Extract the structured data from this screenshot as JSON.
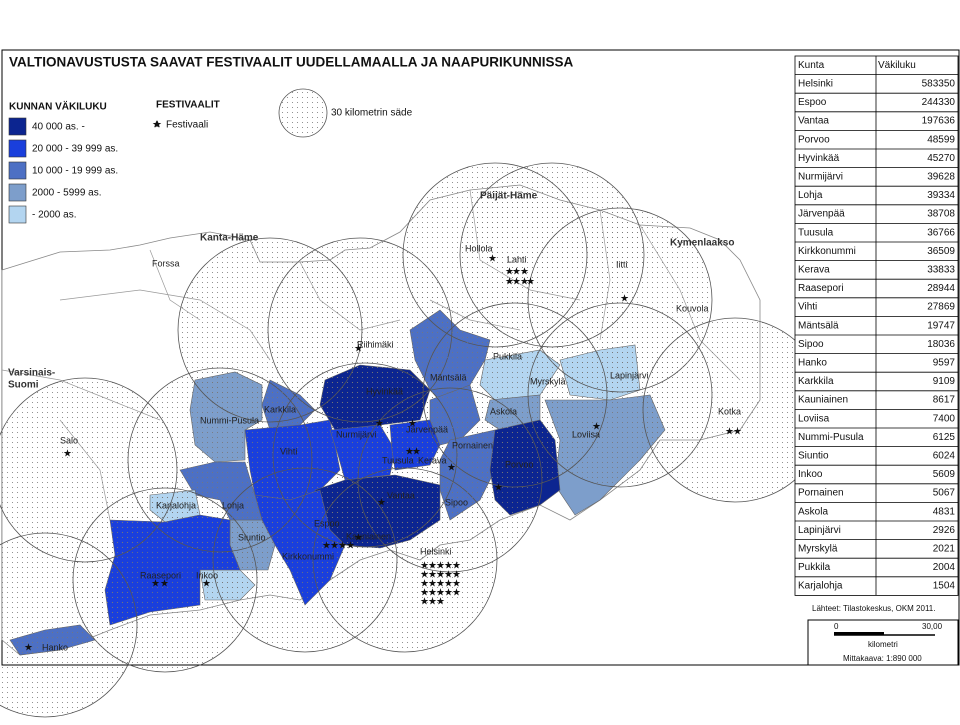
{
  "title": "VALTIONAVUSTUSTA SAAVAT FESTIVAALIT UUDELLAMAALLA JA NAAPURIKUNNISSA",
  "legend": {
    "population_title": "KUNNAN VÄKILUKU",
    "classes": [
      {
        "label": "40 000 as. -",
        "color": "#0c2590"
      },
      {
        "label": "20 000 - 39 999 as.",
        "color": "#1a3fdc"
      },
      {
        "label": "10 000 - 19 999 as.",
        "color": "#4d70c4"
      },
      {
        "label": "2000 - 5999 as.",
        "color": "#7d9ecb"
      },
      {
        "label": "- 2000 as.",
        "color": "#b3d5f0"
      }
    ],
    "festival_title": "FESTIVAALIT",
    "festival_label": "Festivaali",
    "radius_label": "30 kilometrin säde"
  },
  "regions": [
    "Kanta-Häme",
    "Päijät-Häme",
    "Kymenlaakso",
    "Varsinais-",
    "Suomi"
  ],
  "places": [
    "Forssa",
    "Hollola",
    "Lahti",
    "Iitti",
    "Kouvola",
    "Riihimäki",
    "Pukkila",
    "Mäntsälä",
    "Myrskylä",
    "Lapinjärvi",
    "Hyvinkää",
    "Askola",
    "Karkkila",
    "Nummi-Pusula",
    "Nurmijärvi",
    "Järvenpää",
    "Loviisa",
    "Kotka",
    "Pornainen",
    "Salo",
    "Vihti",
    "Tuusula",
    "Kerava",
    "Porvoo",
    "Vantaa",
    "Sipoo",
    "Karjalohja",
    "Lohja",
    "Espoo",
    "Kauniainen",
    "Siuntio",
    "Helsinki",
    "Kirkkonummi",
    "Raasepori",
    "Inkoo",
    "Hanko"
  ],
  "table": {
    "header": [
      "Kunta",
      "Väkiluku"
    ],
    "rows": [
      [
        "Helsinki",
        583350
      ],
      [
        "Espoo",
        244330
      ],
      [
        "Vantaa",
        197636
      ],
      [
        "Porvoo",
        48599
      ],
      [
        "Hyvinkää",
        45270
      ],
      [
        "Nurmijärvi",
        39628
      ],
      [
        "Lohja",
        39334
      ],
      [
        "Järvenpää",
        38708
      ],
      [
        "Tuusula",
        36766
      ],
      [
        "Kirkkonummi",
        36509
      ],
      [
        "Kerava",
        33833
      ],
      [
        "Raasepori",
        28944
      ],
      [
        "Vihti",
        27869
      ],
      [
        "Mäntsälä",
        19747
      ],
      [
        "Sipoo",
        18036
      ],
      [
        "Hanko",
        9597
      ],
      [
        "Karkkila",
        9109
      ],
      [
        "Kauniainen",
        8617
      ],
      [
        "Loviisa",
        7400
      ],
      [
        "Nummi-Pusula",
        6125
      ],
      [
        "Siuntio",
        6024
      ],
      [
        "Inkoo",
        5609
      ],
      [
        "Pornainen",
        5067
      ],
      [
        "Askola",
        4831
      ],
      [
        "Lapinjärvi",
        2926
      ],
      [
        "Myrskylä",
        2021
      ],
      [
        "Pukkila",
        2004
      ],
      [
        "Karjalohja",
        1504
      ]
    ]
  },
  "source": "Lähteet: Tilastokeskus, OKM 2011.",
  "scale": {
    "start": "0",
    "end": "30,00",
    "unit": "kilometri",
    "ratio": "Mittakaava:  1:890 000"
  }
}
